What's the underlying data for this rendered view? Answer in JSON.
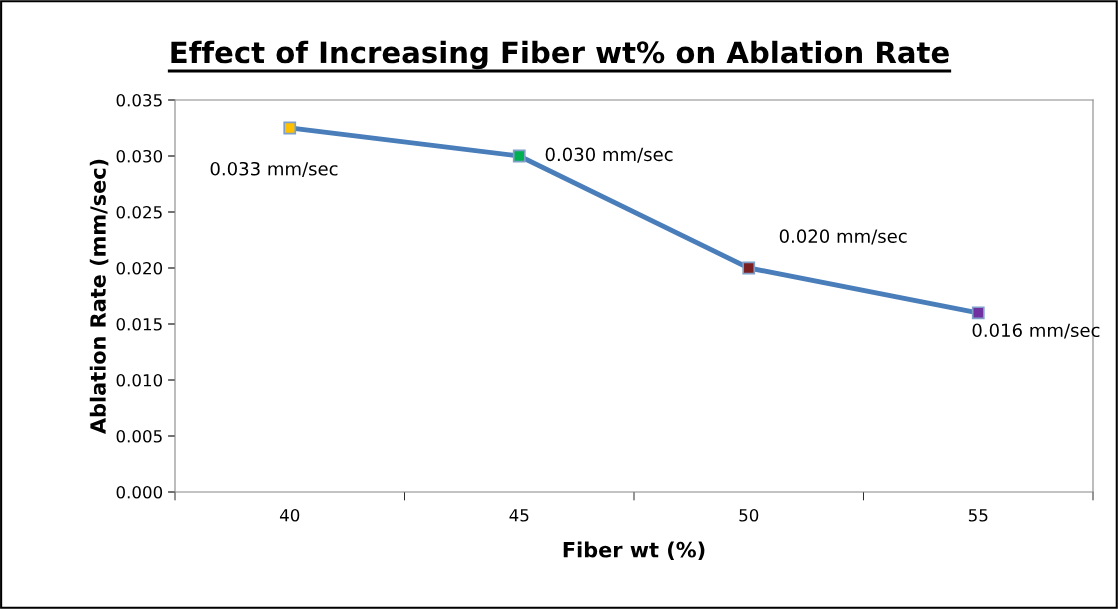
{
  "chart_data": {
    "type": "line",
    "title": "Effect of Increasing Fiber wt% on Ablation Rate",
    "xlabel": "Fiber wt (%)",
    "ylabel": "Ablation Rate (mm/sec)",
    "categories": [
      "40",
      "45",
      "50",
      "55"
    ],
    "series": [
      {
        "color": "#4a7ebb",
        "colors": [
          "#ffc000",
          "#00b050",
          "#7b2020",
          "#7030a0"
        ],
        "values": [
          0.0325,
          0.03,
          0.02,
          0.016
        ],
        "value_labels": [
          "0.033 mm/sec",
          "0.030 mm/sec",
          "0.020 mm/sec",
          "0.016 mm/sec"
        ]
      }
    ],
    "ylim": [
      0,
      0.035
    ],
    "yticks": [
      {
        "value": 0,
        "label": "0.000"
      },
      {
        "value": 0.005,
        "label": "0.005"
      },
      {
        "value": 0.01,
        "label": "0.010"
      },
      {
        "value": 0.015,
        "label": "0.015"
      },
      {
        "value": 0.02,
        "label": "0.020"
      },
      {
        "value": 0.025,
        "label": "0.025"
      },
      {
        "value": 0.03,
        "label": "0.030"
      },
      {
        "value": 0.035,
        "label": "0.035"
      }
    ],
    "marker": "square",
    "line_style": "solid",
    "grid": false,
    "legend": false
  }
}
